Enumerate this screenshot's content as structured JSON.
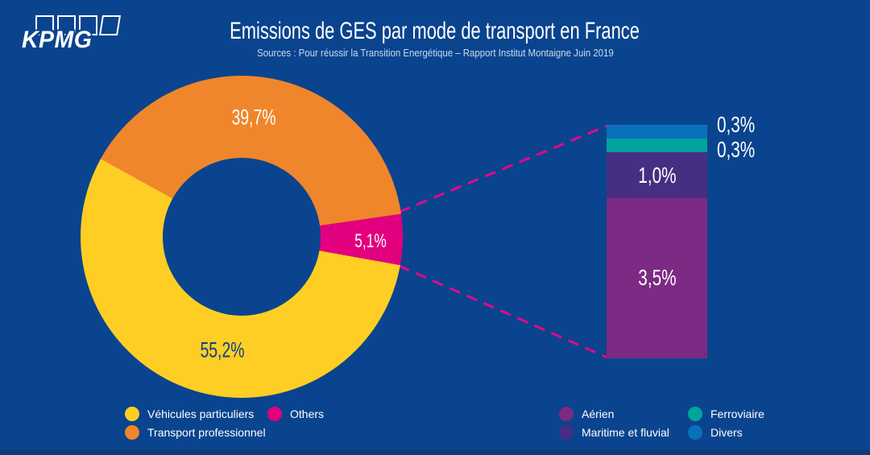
{
  "logo": {
    "text": "KPMG"
  },
  "header": {
    "title": "Emissions de GES par mode de transport en France",
    "subtitle": "Sources : Pour réussir la Transition Energétique – Rapport Institut Montaigne Juin 2019"
  },
  "colors": {
    "background": "#0A448E",
    "footer_strip": "#0D3B7A",
    "callout_dash": "#E8058A",
    "donut_label_dark": "#0D4187",
    "label_white": "#FFFFFF"
  },
  "chart_data": [
    {
      "type": "pie",
      "shape": "donut",
      "title": "Emissions de GES par mode de transport en France",
      "categories": [
        "Véhicules particuliers",
        "Transport professionnel",
        "Others"
      ],
      "values": [
        55.2,
        39.7,
        5.1
      ],
      "labels": [
        "55,2%",
        "39,7%",
        "5,1%"
      ],
      "colors": [
        "#FFCE24",
        "#F0862B",
        "#E2007E"
      ],
      "unit": "%",
      "legend_position": "bottom-left"
    },
    {
      "type": "bar",
      "shape": "stacked-column",
      "categories": [
        "Divers",
        "Ferroviaire",
        "Maritime et fluvial",
        "Aérien"
      ],
      "values": [
        0.3,
        0.3,
        1.0,
        3.5
      ],
      "labels": [
        "0,3%",
        "0,3%",
        "1,0%",
        "3,5%"
      ],
      "colors": [
        "#0B70BC",
        "#00A49D",
        "#462F82",
        "#7C2A83"
      ],
      "unit": "%",
      "total": 5.1,
      "stack_order": "top-to-bottom",
      "legend_position": "bottom-right"
    }
  ],
  "legends": {
    "pie": [
      {
        "label": "Véhicules particuliers"
      },
      {
        "label": "Transport professionnel"
      },
      {
        "label": "Others"
      }
    ],
    "bar": [
      {
        "label": "Aérien"
      },
      {
        "label": "Maritime et fluvial"
      },
      {
        "label": "Ferroviaire"
      },
      {
        "label": "Divers"
      }
    ]
  }
}
